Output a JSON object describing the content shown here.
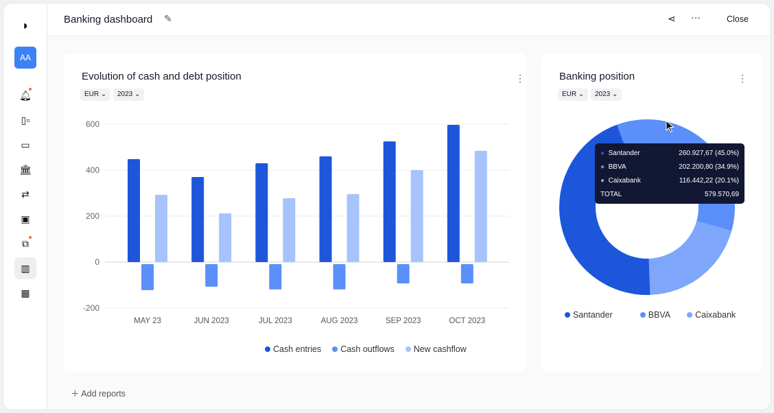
{
  "header": {
    "title": "Banking dashboard",
    "close": "Close"
  },
  "sidebar": {
    "avatar": "AA"
  },
  "bar_card": {
    "title": "Evolution of cash and debt position",
    "currency": "EUR",
    "year": "2023"
  },
  "pie_card": {
    "title": "Banking position",
    "currency": "EUR",
    "year": "2023"
  },
  "add_reports": "Add reports",
  "tooltip": {
    "rows": [
      {
        "name": "Santander",
        "value": "260.927,67 (45.0%)"
      },
      {
        "name": "BBVA",
        "value": "202.200,80 (34.9%)"
      },
      {
        "name": "Caixabank",
        "value": "116.442,22 (20.1%)"
      }
    ],
    "total_label": "TOTAL",
    "total_value": "579.570,69"
  },
  "chart_data": [
    {
      "type": "bar",
      "title": "Evolution of cash and debt position",
      "categories": [
        "MAY 23",
        "JUN 2023",
        "JUL 2023",
        "AUG 2023",
        "SEP 2023",
        "OCT 2023"
      ],
      "series": [
        {
          "name": "Cash entries",
          "color": "#1d56db",
          "values": [
            448,
            370,
            430,
            460,
            525,
            597
          ]
        },
        {
          "name": "Cash outflows",
          "color": "#5b8ff9",
          "values": [
            -122,
            -107,
            -119,
            -119,
            -93,
            -93
          ]
        },
        {
          "name": "New cashflow",
          "color": "#a7c3fc",
          "values": [
            293,
            212,
            278,
            296,
            400,
            484
          ]
        }
      ],
      "yticks": [
        "600",
        "400",
        "200",
        "0",
        "-200"
      ],
      "ylim": [
        -200,
        600
      ],
      "grid": true,
      "legend": "bottom"
    },
    {
      "type": "pie",
      "title": "Banking position",
      "labels": [
        "Santander",
        "BBVA",
        "Caixabank"
      ],
      "values": [
        45.0,
        34.9,
        20.1
      ],
      "colors": [
        "#1d56db",
        "#5b8ff9",
        "#7ea7fb"
      ],
      "legend": "bottom"
    }
  ]
}
